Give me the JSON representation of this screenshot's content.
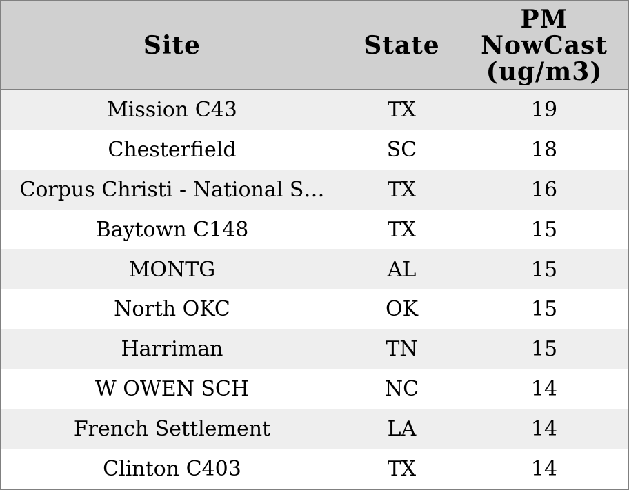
{
  "colors": {
    "header_background": "#d0d0d0",
    "stripe_row_background": "#eeeeee",
    "plain_row_background": "#ffffff",
    "border": "#808080",
    "text": "#000000"
  },
  "table": {
    "columns": [
      {
        "id": "site",
        "label": "Site"
      },
      {
        "id": "state",
        "label": "State"
      },
      {
        "id": "pm_nowcast",
        "label": "PM\nNowCast\n(ug/m3)"
      }
    ],
    "rows": [
      {
        "site": "Mission C43",
        "state": "TX",
        "pm_nowcast": "19"
      },
      {
        "site": "Chesterfield",
        "state": "SC",
        "pm_nowcast": "18"
      },
      {
        "site": "Corpus Christi - National S…",
        "state": "TX",
        "pm_nowcast": "16"
      },
      {
        "site": "Baytown C148",
        "state": "TX",
        "pm_nowcast": "15"
      },
      {
        "site": "MONTG",
        "state": "AL",
        "pm_nowcast": "15"
      },
      {
        "site": "North OKC",
        "state": "OK",
        "pm_nowcast": "15"
      },
      {
        "site": "Harriman",
        "state": "TN",
        "pm_nowcast": "15"
      },
      {
        "site": "W OWEN SCH",
        "state": "NC",
        "pm_nowcast": "14"
      },
      {
        "site": "French Settlement",
        "state": "LA",
        "pm_nowcast": "14"
      },
      {
        "site": "Clinton C403",
        "state": "TX",
        "pm_nowcast": "14"
      }
    ]
  },
  "chart_data": {
    "type": "table",
    "title": "",
    "columns": [
      "Site",
      "State",
      "PM NowCast (ug/m3)"
    ],
    "rows": [
      [
        "Mission C43",
        "TX",
        19
      ],
      [
        "Chesterfield",
        "SC",
        18
      ],
      [
        "Corpus Christi - National S…",
        "TX",
        16
      ],
      [
        "Baytown C148",
        "TX",
        15
      ],
      [
        "MONTG",
        "AL",
        15
      ],
      [
        "North OKC",
        "OK",
        15
      ],
      [
        "Harriman",
        "TN",
        15
      ],
      [
        "W OWEN SCH",
        "NC",
        14
      ],
      [
        "French Settlement",
        "LA",
        14
      ],
      [
        "Clinton C403",
        "TX",
        14
      ]
    ],
    "layout_hints": {
      "zebra_striping": true,
      "header_style": "bold serif, gray background",
      "cell_alignment": "center",
      "site_column_truncation": "ellipsis"
    }
  }
}
